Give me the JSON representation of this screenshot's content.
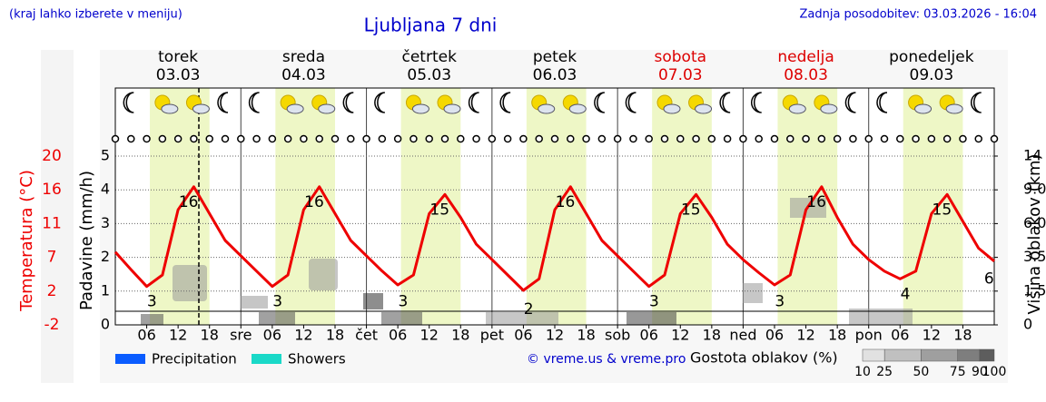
{
  "header": {
    "note": "(kraj lahko izberete v meniju)",
    "updated": "Zadnja posodobitev: 03.03.2026 - 16:04"
  },
  "chart_data": {
    "type": "line",
    "title": "Ljubljana 7 dni",
    "days": [
      {
        "name": "torek",
        "date": "03.03",
        "color": "#000000"
      },
      {
        "name": "sreda",
        "date": "04.03",
        "color": "#000000"
      },
      {
        "name": "četrtek",
        "date": "05.03",
        "color": "#000000"
      },
      {
        "name": "petek",
        "date": "06.03",
        "color": "#000000"
      },
      {
        "name": "sobota",
        "date": "07.03",
        "color": "#dd0000"
      },
      {
        "name": "nedelja",
        "date": "08.03",
        "color": "#dd0000"
      },
      {
        "name": "ponedeljek",
        "date": "09.03",
        "color": "#000000"
      }
    ],
    "xlim": [
      0,
      168
    ],
    "xticks": [
      {
        "value": 6,
        "label": "06"
      },
      {
        "value": 12,
        "label": "12"
      },
      {
        "value": 18,
        "label": "18"
      },
      {
        "value": 24,
        "label": "sre"
      },
      {
        "value": 30,
        "label": "06"
      },
      {
        "value": 36,
        "label": "12"
      },
      {
        "value": 42,
        "label": "18"
      },
      {
        "value": 48,
        "label": "čet"
      },
      {
        "value": 54,
        "label": "06"
      },
      {
        "value": 60,
        "label": "12"
      },
      {
        "value": 66,
        "label": "18"
      },
      {
        "value": 72,
        "label": "pet"
      },
      {
        "value": 78,
        "label": "06"
      },
      {
        "value": 84,
        "label": "12"
      },
      {
        "value": 90,
        "label": "18"
      },
      {
        "value": 96,
        "label": "sob"
      },
      {
        "value": 102,
        "label": "06"
      },
      {
        "value": 108,
        "label": "12"
      },
      {
        "value": 114,
        "label": "18"
      },
      {
        "value": 120,
        "label": "ned"
      },
      {
        "value": 126,
        "label": "06"
      },
      {
        "value": 132,
        "label": "12"
      },
      {
        "value": 138,
        "label": "18"
      },
      {
        "value": 144,
        "label": "pon"
      },
      {
        "value": 150,
        "label": "06"
      },
      {
        "value": 156,
        "label": "12"
      },
      {
        "value": 162,
        "label": "18"
      }
    ],
    "ylabel": "Padavine (mm/h)",
    "ylim": [
      0,
      5
    ],
    "yticks": [
      0,
      1,
      2,
      3,
      4,
      5
    ],
    "grid": true,
    "y2label": "Višina oblakov (km)",
    "y2ticks": [
      0,
      1.5,
      3.5,
      {
        "value": 6,
        "label": "6.0"
      },
      {
        "value": 9,
        "label": "9.0"
      },
      14
    ],
    "temperature": {
      "name": "Temperatura (°C)",
      "color": "#ee0000",
      "lim": [
        -2,
        20
      ],
      "ticks": [
        -2,
        {
          "value": 2.4,
          "label": "2"
        },
        {
          "value": 6.8,
          "label": "7"
        },
        {
          "value": 11.2,
          "label": "11"
        },
        {
          "value": 15.6,
          "label": "16"
        },
        20
      ],
      "x": [
        0,
        3,
        6,
        9,
        12,
        15,
        18,
        21,
        24,
        27,
        30,
        33,
        36,
        39,
        42,
        45,
        48,
        51,
        54,
        57,
        60,
        63,
        66,
        69,
        72,
        75,
        78,
        81,
        84,
        87,
        90,
        93,
        96,
        99,
        102,
        105,
        108,
        111,
        114,
        117,
        120,
        123,
        126,
        129,
        132,
        135,
        138,
        141,
        144,
        147,
        150,
        153,
        156,
        159,
        162,
        165,
        168
      ],
      "values": [
        7.5,
        5.2,
        3.0,
        4.5,
        13,
        16,
        12.5,
        9,
        7,
        5,
        3.0,
        4.5,
        13,
        16,
        12.5,
        9,
        7,
        5,
        3.2,
        4.5,
        12.5,
        15,
        12,
        8.5,
        6.5,
        4.5,
        2.5,
        4,
        13,
        16,
        12.5,
        9,
        7,
        5,
        3,
        4.5,
        12.5,
        15,
        12,
        8.5,
        6.5,
        4.8,
        3.2,
        4.5,
        13,
        16,
        12,
        8.5,
        6.5,
        5,
        4,
        5,
        12.5,
        15,
        11.5,
        8,
        6.3
      ],
      "extremes": [
        {
          "x": 7,
          "value": 3
        },
        {
          "x": 14,
          "value": 16
        },
        {
          "x": 31,
          "value": 3
        },
        {
          "x": 38,
          "value": 16
        },
        {
          "x": 55,
          "value": 3
        },
        {
          "x": 62,
          "value": 15
        },
        {
          "x": 79,
          "value": 2
        },
        {
          "x": 86,
          "value": 16
        },
        {
          "x": 103,
          "value": 3
        },
        {
          "x": 110,
          "value": 15
        },
        {
          "x": 127,
          "value": 3
        },
        {
          "x": 134,
          "value": 16
        },
        {
          "x": 151,
          "value": 4
        },
        {
          "x": 158,
          "value": 15
        },
        {
          "x": 167,
          "value": 6
        }
      ]
    },
    "legend": [
      {
        "name": "Precipitation",
        "color": "#0a5cff"
      },
      {
        "name": "Showers",
        "color": "#1ad9c8"
      }
    ],
    "credit": "© vreme.us & vreme.pro",
    "cloud_scale": {
      "title": "Gostota oblakov (%)",
      "ticks": [
        10,
        25,
        50,
        75,
        90,
        100
      ]
    }
  }
}
